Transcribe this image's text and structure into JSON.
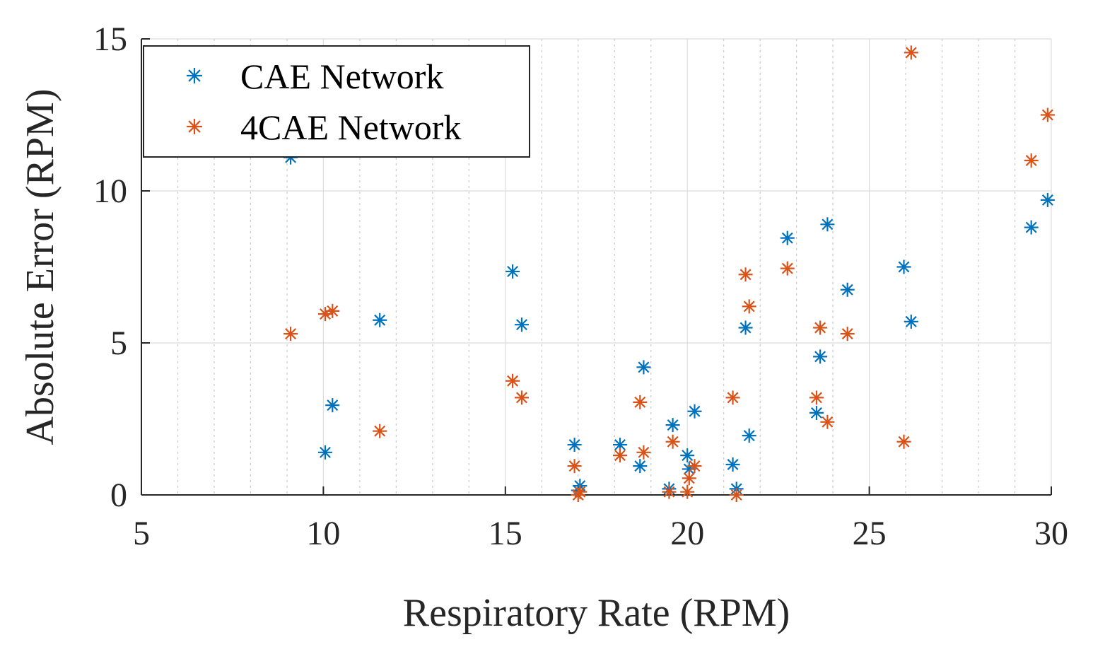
{
  "chart_data": {
    "type": "scatter",
    "xlabel": "Respiratory Rate (RPM)",
    "ylabel": "Absolute Error (RPM)",
    "xlim": [
      5,
      30
    ],
    "ylim": [
      0,
      15
    ],
    "xticks": [
      "5",
      "10",
      "15",
      "20",
      "25",
      "30"
    ],
    "yticks": [
      "0",
      "5",
      "10",
      "15"
    ],
    "grid": true,
    "minor_grid_x": true,
    "legend_position": "top-left",
    "marker": "asterisk",
    "series": [
      {
        "name": "CAE Network",
        "color": "#0072BD",
        "points": [
          [
            9.1,
            11.1
          ],
          [
            10.05,
            1.4
          ],
          [
            10.25,
            2.95
          ],
          [
            11.55,
            5.75
          ],
          [
            15.2,
            7.35
          ],
          [
            15.45,
            5.6
          ],
          [
            16.9,
            1.65
          ],
          [
            17.0,
            0.15
          ],
          [
            17.05,
            0.3
          ],
          [
            18.15,
            1.65
          ],
          [
            18.7,
            0.95
          ],
          [
            18.8,
            4.2
          ],
          [
            19.5,
            0.2
          ],
          [
            19.6,
            2.3
          ],
          [
            20.0,
            1.3
          ],
          [
            20.05,
            0.85
          ],
          [
            20.2,
            2.75
          ],
          [
            21.25,
            1.0
          ],
          [
            21.35,
            0.2
          ],
          [
            21.6,
            5.5
          ],
          [
            21.7,
            1.95
          ],
          [
            22.75,
            8.45
          ],
          [
            23.55,
            2.7
          ],
          [
            23.65,
            4.55
          ],
          [
            23.85,
            8.9
          ],
          [
            24.4,
            6.75
          ],
          [
            25.95,
            7.5
          ],
          [
            26.15,
            5.7
          ],
          [
            29.45,
            8.8
          ],
          [
            29.9,
            9.7
          ]
        ]
      },
      {
        "name": "4CAE Network",
        "color": "#D95319",
        "points": [
          [
            9.1,
            5.3
          ],
          [
            10.05,
            5.95
          ],
          [
            10.25,
            6.05
          ],
          [
            11.55,
            2.1
          ],
          [
            15.2,
            3.75
          ],
          [
            15.45,
            3.2
          ],
          [
            16.9,
            0.95
          ],
          [
            17.0,
            0.0
          ],
          [
            17.05,
            0.1
          ],
          [
            18.15,
            1.3
          ],
          [
            18.7,
            3.05
          ],
          [
            18.8,
            1.4
          ],
          [
            19.5,
            0.1
          ],
          [
            19.6,
            1.75
          ],
          [
            20.0,
            0.1
          ],
          [
            20.05,
            0.55
          ],
          [
            20.2,
            0.95
          ],
          [
            21.25,
            3.2
          ],
          [
            21.35,
            0.0
          ],
          [
            21.6,
            7.25
          ],
          [
            21.7,
            6.2
          ],
          [
            22.75,
            7.45
          ],
          [
            23.55,
            3.2
          ],
          [
            23.65,
            5.5
          ],
          [
            23.85,
            2.4
          ],
          [
            24.4,
            5.3
          ],
          [
            25.95,
            1.75
          ],
          [
            26.15,
            14.55
          ],
          [
            29.45,
            11.0
          ],
          [
            29.9,
            12.5
          ]
        ]
      }
    ]
  }
}
